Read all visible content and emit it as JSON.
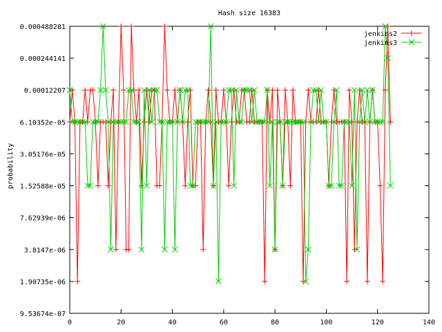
{
  "chart_data": {
    "type": "line",
    "title": "Hash size 16383",
    "xlabel": "",
    "ylabel": "probability",
    "xlim": [
      0,
      140
    ],
    "ylim": [
      9.53674e-07,
      0.000488281
    ],
    "log_y": true,
    "grid": false,
    "legend_position": "top-right",
    "x_ticks": [
      "0",
      "20",
      "40",
      "60",
      "80",
      "100",
      "120",
      "140"
    ],
    "y_ticks": [
      "0.000488281",
      "0.000244141",
      "0.00012207",
      "6.10352e-05",
      "3.05176e-05",
      "1.52588e-05",
      "7.62939e-06",
      "3.8147e-06",
      "1.90735e-06",
      "9.53674e-07"
    ],
    "series": [
      {
        "name": "jenkins2",
        "color": "#ff0000",
        "marker": "plus",
        "values": [
          6.10352e-05,
          0.00012207,
          6.10352e-05,
          1.90735e-06,
          6.10352e-05,
          6.10352e-05,
          0.00012207,
          6.10352e-05,
          0.00012207,
          0.00012207,
          6.10352e-05,
          1.52588e-05,
          6.10352e-05,
          6.10352e-05,
          6.10352e-05,
          1.52588e-05,
          6.10352e-05,
          0.00012207,
          3.8147e-06,
          6.10352e-05,
          0.000488281,
          0.00012207,
          3.8147e-06,
          3.8147e-06,
          0.000488281,
          0.00012207,
          6.10352e-05,
          0.00012207,
          1.52588e-05,
          6.10352e-05,
          0.00012207,
          6.10352e-05,
          0.00012207,
          0.00012207,
          1.52588e-05,
          1.52588e-05,
          6.10352e-05,
          0.000488281,
          0.00012207,
          6.10352e-05,
          6.10352e-05,
          0.00012207,
          6.10352e-05,
          0.00012207,
          6.10352e-05,
          1.52588e-05,
          6.10352e-05,
          0.00012207,
          1.52588e-05,
          1.52588e-05,
          6.10352e-05,
          6.10352e-05,
          3.8147e-06,
          6.10352e-05,
          0.00012207,
          6.10352e-05,
          1.52588e-05,
          0.00012207,
          6.10352e-05,
          6.10352e-05,
          0.00012207,
          6.10352e-05,
          1.52588e-05,
          6.10352e-05,
          0.00012207,
          6.10352e-05,
          6.10352e-05,
          0.00012207,
          0.00012207,
          6.10352e-05,
          6.10352e-05,
          0.00012207,
          6.10352e-05,
          6.10352e-05,
          6.10352e-05,
          6.10352e-05,
          1.90735e-06,
          0.00012207,
          6.10352e-05,
          0.00012207,
          3.8147e-06,
          0.00012207,
          6.10352e-05,
          1.52588e-05,
          0.00012207,
          6.10352e-05,
          1.52588e-05,
          0.00012207,
          6.10352e-05,
          6.10352e-05,
          6.10352e-05,
          1.90735e-06,
          6.10352e-05,
          0.00012207,
          6.10352e-05,
          6.10352e-05,
          6.10352e-05,
          0.00012207,
          6.10352e-05,
          6.10352e-05,
          6.10352e-05,
          1.52588e-05,
          6.10352e-05,
          0.00012207,
          6.10352e-05,
          6.10352e-05,
          6.10352e-05,
          6.10352e-05,
          1.90735e-06,
          0.00012207,
          6.10352e-05,
          3.8147e-06,
          6.10352e-05,
          0.00012207,
          6.10352e-05,
          6.10352e-05,
          1.90735e-06,
          6.10352e-05,
          0.00012207,
          6.10352e-05,
          6.10352e-05,
          1.52588e-05,
          1.90735e-06,
          0.00012207,
          0.000488281,
          6.10352e-05
        ]
      },
      {
        "name": "jenkins3",
        "color": "#00cc00",
        "marker": "cross",
        "values": [
          0.00012207,
          6.10352e-05,
          6.10352e-05,
          6.10352e-05,
          6.10352e-05,
          6.10352e-05,
          6.10352e-05,
          1.52588e-05,
          1.52588e-05,
          6.10352e-05,
          6.10352e-05,
          6.10352e-05,
          0.00012207,
          0.000488281,
          0.00012207,
          6.10352e-05,
          3.8147e-06,
          6.10352e-05,
          6.10352e-05,
          6.10352e-05,
          6.10352e-05,
          6.10352e-05,
          6.10352e-05,
          0.00012207,
          0.00012207,
          6.10352e-05,
          6.10352e-05,
          6.10352e-05,
          3.8147e-06,
          0.00012207,
          1.52588e-05,
          0.00012207,
          6.10352e-05,
          0.00012207,
          0.00012207,
          6.10352e-05,
          6.10352e-05,
          3.8147e-06,
          6.10352e-05,
          6.10352e-05,
          6.10352e-05,
          3.8147e-06,
          6.10352e-05,
          0.00012207,
          6.10352e-05,
          0.00012207,
          0.00012207,
          1.52588e-05,
          1.52588e-05,
          6.10352e-05,
          6.10352e-05,
          6.10352e-05,
          6.10352e-05,
          6.10352e-05,
          6.10352e-05,
          0.000488281,
          1.52588e-05,
          6.10352e-05,
          1.90735e-06,
          6.10352e-05,
          6.10352e-05,
          6.10352e-05,
          0.00012207,
          0.00012207,
          1.52588e-05,
          0.00012207,
          6.10352e-05,
          6.10352e-05,
          0.00012207,
          0.00012207,
          0.00012207,
          6.10352e-05,
          0.00012207,
          6.10352e-05,
          6.10352e-05,
          6.10352e-05,
          6.10352e-05,
          0.00012207,
          1.52588e-05,
          6.10352e-05,
          3.8147e-06,
          6.10352e-05,
          6.10352e-05,
          1.52588e-05,
          6.10352e-05,
          6.10352e-05,
          6.10352e-05,
          6.10352e-05,
          6.10352e-05,
          6.10352e-05,
          6.10352e-05,
          6.10352e-05,
          1.90735e-06,
          3.8147e-06,
          6.10352e-05,
          0.00012207,
          0.00012207,
          6.10352e-05,
          0.00012207,
          6.10352e-05,
          6.10352e-05,
          1.52588e-05,
          1.52588e-05,
          6.10352e-05,
          0.00012207,
          1.52588e-05,
          1.52588e-05,
          6.10352e-05,
          6.10352e-05,
          6.10352e-05,
          1.52588e-05,
          0.00012207,
          3.8147e-06,
          6.10352e-05,
          0.00012207,
          6.10352e-05,
          0.00012207,
          6.10352e-05,
          0.00012207,
          6.10352e-05,
          6.10352e-05,
          6.10352e-05,
          6.10352e-05,
          0.000488281,
          0.000244141,
          1.52588e-05
        ]
      }
    ]
  }
}
